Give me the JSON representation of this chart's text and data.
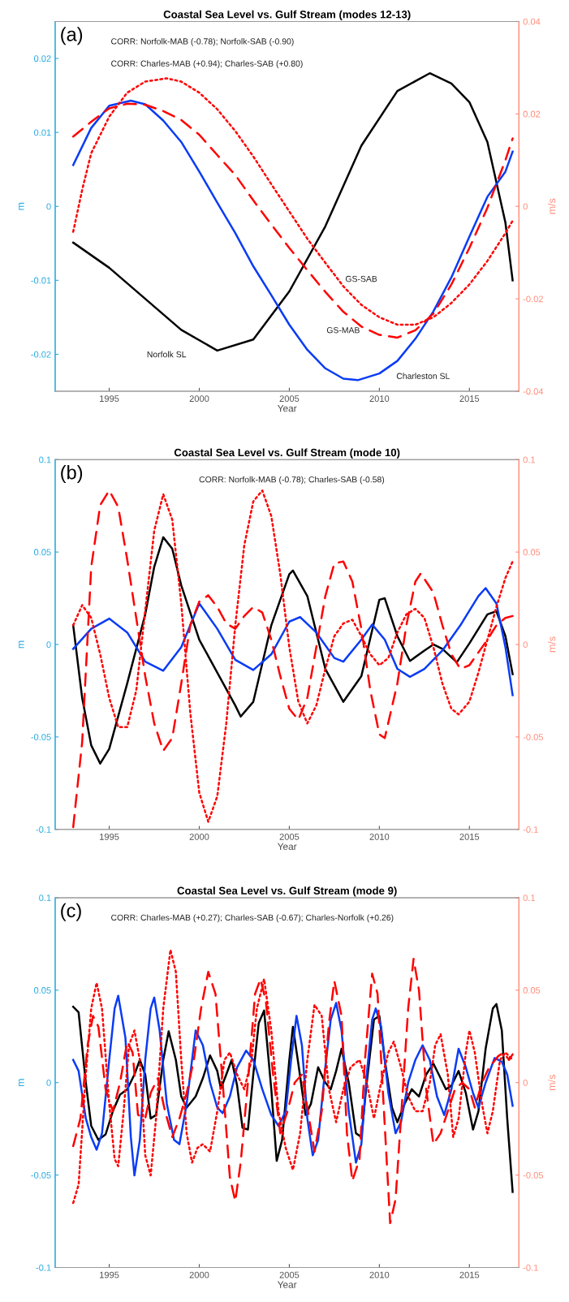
{
  "chart_data": [
    {
      "type": "line",
      "title": "Coastal Sea Level vs. Gulf Stream (modes 12-13)",
      "xlabel": "Year",
      "ylabel": "m",
      "y2label": "m/s",
      "xlim": [
        1992,
        2017.75
      ],
      "xticks": [
        1995,
        2000,
        2005,
        2010,
        2015
      ],
      "ylim": [
        -0.025,
        0.025
      ],
      "yticks": [
        -0.02,
        -0.01,
        0,
        0.01,
        0.02
      ],
      "y2lim": [
        -0.04,
        0.04
      ],
      "y2ticks": [
        -0.04,
        -0.02,
        0,
        0.02,
        0.04
      ],
      "grid": false,
      "legend": false,
      "marker": "none",
      "annotations": [
        "(a)",
        "CORR: Norfolk-MAB (-0.78); Norfolk-SAB (-0.90)",
        "CORR: Charles-MAB (+0.94); Charles-SAB (+0.80)"
      ],
      "series": [
        {
          "name": "Norfolk SL",
          "color": "#000000",
          "line_style": "solid",
          "x": [
            1993,
            1995,
            1997,
            1999,
            2001,
            2003,
            2005,
            2007,
            2009,
            2011,
            2012.8,
            2014,
            2015,
            2016,
            2017,
            2017.4
          ],
          "values": [
            -0.0049,
            -0.0083,
            -0.0125,
            -0.0167,
            -0.0195,
            -0.018,
            -0.0115,
            -0.0027,
            0.0082,
            0.0156,
            0.018,
            0.0166,
            0.0141,
            0.0087,
            -0.0022,
            -0.01
          ]
        },
        {
          "name": "Charleston SL",
          "color": "#0a3cf5",
          "line_style": "solid",
          "x": [
            1993,
            1994,
            1995,
            1996.2,
            1997,
            1998,
            1999,
            2000,
            2001,
            2002,
            2003,
            2004,
            2005,
            2006,
            2007,
            2008,
            2008.8,
            2010,
            2011,
            2012,
            2013,
            2014,
            2015,
            2016,
            2017,
            2017.4
          ],
          "values": [
            0.0056,
            0.0106,
            0.0136,
            0.0143,
            0.0138,
            0.0116,
            0.0087,
            0.0047,
            0.0005,
            -0.0036,
            -0.0081,
            -0.012,
            -0.016,
            -0.0194,
            -0.0219,
            -0.0233,
            -0.0235,
            -0.0226,
            -0.0209,
            -0.0179,
            -0.0142,
            -0.0096,
            -0.0041,
            0.0013,
            0.0047,
            0.0074
          ]
        },
        {
          "name": "GS-MAB",
          "color": "#ff0000",
          "line_style": "dashed",
          "axis": "y2",
          "x": [
            1993,
            1994,
            1995,
            1996,
            1997,
            1998,
            1999,
            2000,
            2001,
            2002,
            2003,
            2004,
            2005,
            2006,
            2007,
            2008,
            2009,
            2010,
            2011,
            2012,
            2013,
            2014,
            2015,
            2016,
            2017,
            2017.4
          ],
          "values": [
            0.0151,
            0.0183,
            0.0212,
            0.0222,
            0.022,
            0.0206,
            0.0187,
            0.0155,
            0.0111,
            0.0068,
            0.0013,
            -0.0039,
            -0.009,
            -0.0138,
            -0.0185,
            -0.0228,
            -0.026,
            -0.0278,
            -0.0284,
            -0.0268,
            -0.0232,
            -0.0169,
            -0.009,
            -0.0003,
            0.01,
            0.0147
          ]
        },
        {
          "name": "GS-SAB",
          "color": "#ff0000",
          "line_style": "dotted",
          "axis": "y2",
          "x": [
            1993,
            1993.5,
            1994,
            1995,
            1996,
            1997,
            1998.2,
            1999,
            2000,
            2001,
            2002,
            2003,
            2004,
            2005,
            2006,
            2007,
            2008,
            2009,
            2010,
            2011,
            2012,
            2013,
            2014,
            2015,
            2016,
            2017,
            2017.4
          ],
          "values": [
            -0.0055,
            0.0036,
            0.0115,
            0.0194,
            0.0246,
            0.027,
            0.0277,
            0.027,
            0.0246,
            0.021,
            0.0163,
            0.0108,
            0.0048,
            -0.0011,
            -0.007,
            -0.0122,
            -0.0173,
            -0.0213,
            -0.024,
            -0.0256,
            -0.0256,
            -0.024,
            -0.0209,
            -0.0169,
            -0.0118,
            -0.0058,
            -0.0031
          ]
        }
      ]
    },
    {
      "type": "line",
      "title": "Coastal Sea Level vs. Gulf Stream (mode 10)",
      "xlabel": "Year",
      "ylabel": "m",
      "y2label": "m/s",
      "xlim": [
        1992,
        2017.75
      ],
      "xticks": [
        1995,
        2000,
        2005,
        2010,
        2015
      ],
      "ylim": [
        -0.1,
        0.1
      ],
      "yticks": [
        -0.1,
        -0.05,
        0,
        0.05,
        0.1
      ],
      "y2lim": [
        -0.1,
        0.1
      ],
      "y2ticks": [
        -0.1,
        -0.05,
        0,
        0.05,
        0.1
      ],
      "grid": false,
      "legend": false,
      "marker": "none",
      "annotations": [
        "(b)",
        "CORR: Norfolk-MAB (-0.78); Charles-SAB (-0.58)"
      ],
      "series": [
        {
          "color": "#000000",
          "line_style": "solid",
          "x": [
            1993,
            1993.5,
            1994,
            1994.5,
            1995,
            1996,
            1997,
            1997.5,
            1998,
            1998.5,
            1999,
            2000,
            2001,
            2002,
            2002.3,
            2003,
            2004,
            2005,
            2005.2,
            2006,
            2007,
            2008,
            2009,
            2010,
            2010.3,
            2011,
            2011.7,
            2012.5,
            2013,
            2013.5,
            2014.3,
            2015,
            2016,
            2016.5,
            2017,
            2017.4
          ],
          "values": [
            0.0104,
            -0.029,
            -0.0545,
            -0.0644,
            -0.0565,
            -0.021,
            0.0163,
            0.042,
            0.058,
            0.0518,
            0.032,
            0.0026,
            -0.0152,
            -0.033,
            -0.039,
            -0.031,
            0.0104,
            0.038,
            0.04,
            0.0262,
            -0.0132,
            -0.031,
            -0.0171,
            0.0242,
            0.025,
            0.0045,
            -0.0089,
            -0.0033,
            0,
            -0.0024,
            -0.0096,
            0.0006,
            0.0163,
            0.018,
            0.0045,
            -0.016
          ]
        },
        {
          "color": "#0a3cf5",
          "line_style": "solid",
          "x": [
            1993,
            1994,
            1995,
            1996,
            1997,
            1998,
            1999,
            2000,
            2001,
            2002,
            2003,
            2004,
            2005,
            2005.6,
            2006.5,
            2007.5,
            2008,
            2009,
            2009.6,
            2010.3,
            2011,
            2011.7,
            2012.5,
            2013.5,
            2014.5,
            2015.5,
            2015.9,
            2016.5,
            2017,
            2017.4
          ],
          "values": [
            -0.0024,
            0.0085,
            0.014,
            0.0065,
            -0.0093,
            -0.0142,
            -0.0014,
            0.0222,
            0.0085,
            -0.0083,
            -0.0138,
            -0.0053,
            0.0124,
            0.0148,
            0.0065,
            -0.0073,
            -0.0093,
            0.0026,
            0.0108,
            0.0026,
            -0.0132,
            -0.0175,
            -0.0132,
            -0.0033,
            0.0104,
            0.0262,
            0.0305,
            0.0222,
            -0.0014,
            -0.0274
          ]
        },
        {
          "color": "#ff0000",
          "line_style": "dashed",
          "axis": "y2",
          "x": [
            1993,
            1993.5,
            1994,
            1994.5,
            1995,
            1995.5,
            1996,
            1996.5,
            1997,
            1997.5,
            1998,
            1998.5,
            1999,
            1999.5,
            2000,
            2000.5,
            2001,
            2001.5,
            2002,
            2002.5,
            2003,
            2003.5,
            2004,
            2004.5,
            2005,
            2005.5,
            2006,
            2006.5,
            2007,
            2007.5,
            2008,
            2008.5,
            2009,
            2009.5,
            2010,
            2010.3,
            2011,
            2011.5,
            2012,
            2012.3,
            2013,
            2013.5,
            2014,
            2014.5,
            2015,
            2016,
            2016.5,
            2017,
            2017.4
          ],
          "values": [
            -0.0988,
            -0.0526,
            0.0419,
            0.0754,
            0.0833,
            0.0744,
            0.0459,
            0.0144,
            -0.0171,
            -0.0427,
            -0.0575,
            -0.0506,
            -0.0211,
            0.0104,
            0.0232,
            0.0266,
            0.0203,
            0.0114,
            0.0085,
            0.0154,
            0.0203,
            0.0173,
            0.0026,
            -0.0171,
            -0.0348,
            -0.0407,
            -0.0289,
            -0.0014,
            0.0262,
            0.0439,
            0.0449,
            0.034,
            0.0085,
            -0.025,
            -0.0486,
            -0.0506,
            -0.0211,
            0.0104,
            0.034,
            0.0384,
            0.0281,
            0.0104,
            -0.0053,
            -0.0132,
            -0.0112,
            0.0026,
            0.0104,
            0.0144,
            0.0154
          ]
        },
        {
          "color": "#ff0000",
          "line_style": "dotted",
          "axis": "y2",
          "x": [
            1993,
            1993.5,
            1994,
            1994.5,
            1995,
            1995.5,
            1996,
            1996.5,
            1997,
            1997.5,
            1998,
            1998.5,
            1999,
            1999.5,
            2000,
            2000.5,
            2001,
            2001.5,
            2002,
            2002.5,
            2003,
            2003.5,
            2004,
            2004.5,
            2005,
            2005.5,
            2006,
            2006.5,
            2007,
            2007.5,
            2008,
            2008.5,
            2009,
            2009.5,
            2010,
            2010.5,
            2011,
            2011.5,
            2012,
            2012.5,
            2013,
            2013.5,
            2014,
            2014.4,
            2015,
            2015.5,
            2016,
            2016.5,
            2017,
            2017.4
          ],
          "values": [
            0.0104,
            0.0213,
            0.0144,
            -0.0053,
            -0.0289,
            -0.0447,
            -0.0447,
            -0.025,
            0.0183,
            0.0616,
            0.0813,
            0.0675,
            0.0222,
            -0.0368,
            -0.0801,
            -0.0959,
            -0.0821,
            -0.0427,
            0.0104,
            0.0537,
            0.0774,
            0.0833,
            0.0695,
            0.038,
            -0.0014,
            -0.0309,
            -0.0427,
            -0.0329,
            -0.0132,
            0.0045,
            0.0114,
            0.0134,
            0.0045,
            -0.0053,
            -0.0112,
            -0.0073,
            0.0065,
            0.0163,
            0.0193,
            0.0144,
            -0.0014,
            -0.0211,
            -0.0348,
            -0.0378,
            -0.0309,
            -0.0152,
            0.0026,
            0.0203,
            0.036,
            0.0449
          ]
        }
      ]
    },
    {
      "type": "line",
      "title": "Coastal Sea Level vs. Gulf Stream (mode 9)",
      "xlabel": "Year",
      "ylabel": "m",
      "y2label": "m/s",
      "xlim": [
        1992,
        2017.75
      ],
      "xticks": [
        1995,
        2000,
        2005,
        2010,
        2015
      ],
      "ylim": [
        -0.1,
        0.1
      ],
      "yticks": [
        -0.1,
        -0.05,
        0,
        0.05,
        0.1
      ],
      "y2lim": [
        -0.1,
        0.1
      ],
      "y2ticks": [
        -0.1,
        -0.05,
        0,
        0.05,
        0.1
      ],
      "grid": false,
      "legend": false,
      "marker": "none",
      "annotations": [
        "(c)",
        "CORR: Charles-MAB (+0.27); Charles-SAB (-0.67); Charles-Norfolk (+0.26)"
      ],
      "series": [
        {
          "color": "#000000",
          "line_style": "solid",
          "x": [
            1993,
            1993.3,
            1993.7,
            1994,
            1994.4,
            1994.8,
            1995.2,
            1995.6,
            1996,
            1996.4,
            1996.7,
            1997,
            1997.3,
            1997.6,
            1998,
            1998.3,
            1998.7,
            1999,
            1999.3,
            1999.8,
            2000.2,
            2000.6,
            2001,
            2001.2,
            2001.5,
            2001.8,
            2002.1,
            2002.4,
            2002.7,
            2003,
            2003.3,
            2003.6,
            2004,
            2004.3,
            2004.6,
            2005,
            2005.2,
            2005.5,
            2005.9,
            2006.2,
            2006.6,
            2007,
            2007.3,
            2007.6,
            2007.9,
            2008.3,
            2008.7,
            2009,
            2009.3,
            2009.7,
            2010,
            2010.3,
            2010.7,
            2011,
            2011.4,
            2011.8,
            2012.2,
            2012.6,
            2013,
            2013.3,
            2013.7,
            2014,
            2014.4,
            2014.8,
            2015.2,
            2015.5,
            2015.9,
            2016.3,
            2016.5,
            2016.8,
            2017.1,
            2017.4
          ],
          "values": [
            0.041,
            0.038,
            0,
            -0.0234,
            -0.031,
            -0.028,
            -0.0155,
            -0.0065,
            -0.0036,
            0.0044,
            0.0123,
            0.0044,
            -0.0194,
            -0.0175,
            0.0123,
            0.0278,
            0.0123,
            -0.0075,
            -0.0135,
            -0.0075,
            0.0024,
            0.0147,
            0.0063,
            -0.0032,
            0.0044,
            0.0123,
            -0.0016,
            -0.0244,
            -0.0254,
            0.0044,
            0.0321,
            0.039,
            -0.0036,
            -0.0423,
            -0.031,
            0.0123,
            0.0302,
            0.0103,
            -0.0175,
            -0.0115,
            0.0083,
            0,
            -0.0036,
            0.0063,
            0.0183,
            0,
            -0.0274,
            -0.0294,
            0,
            0.0341,
            0.0361,
            0.0123,
            -0.0135,
            -0.0214,
            -0.0115,
            -0.0036,
            -0.0075,
            0.0044,
            0.0103,
            0.0044,
            -0.0036,
            -0.0016,
            0.0063,
            -0.0056,
            -0.0254,
            -0.0155,
            0.0183,
            0.0401,
            0.0425,
            0.0282,
            -0.0194,
            -0.0591
          ]
        },
        {
          "color": "#0a3cf5",
          "line_style": "solid",
          "x": [
            1993,
            1993.3,
            1993.7,
            1994,
            1994.3,
            1994.6,
            1995,
            1995.3,
            1995.5,
            1995.9,
            1996.2,
            1996.4,
            1996.7,
            1997,
            1997.3,
            1997.5,
            1997.8,
            1998.2,
            1998.6,
            1998.9,
            1999.3,
            1999.8,
            2000.2,
            2000.6,
            2001,
            2001.3,
            2001.7,
            2002.1,
            2002.6,
            2003,
            2003.5,
            2004,
            2004.4,
            2004.8,
            2005.1,
            2005.4,
            2005.7,
            2006,
            2006.3,
            2006.6,
            2007,
            2007.3,
            2007.6,
            2007.9,
            2008.3,
            2008.7,
            2009,
            2009.3,
            2009.6,
            2009.8,
            2010.1,
            2010.5,
            2010.9,
            2011.2,
            2011.6,
            2012,
            2012.4,
            2012.8,
            2013.2,
            2013.6,
            2014,
            2014.4,
            2014.8,
            2015.2,
            2015.5,
            2015.9,
            2016.4,
            2016.8,
            2017.1,
            2017.4
          ],
          "values": [
            0.0123,
            0.0063,
            -0.0194,
            -0.0294,
            -0.0363,
            -0.0274,
            0.0123,
            0.0401,
            0.047,
            0.0242,
            -0.0294,
            -0.0502,
            -0.031,
            0.0123,
            0.0401,
            0.046,
            0.0282,
            -0.0115,
            -0.031,
            -0.0333,
            -0.0115,
            0.0282,
            0.0202,
            0,
            -0.0135,
            -0.0165,
            -0.0075,
            0.0083,
            0.0173,
            0.0123,
            -0.0036,
            -0.0175,
            -0.0234,
            -0.0155,
            0.0123,
            0.0361,
            0.0202,
            -0.0194,
            -0.0393,
            -0.031,
            0.0083,
            0.0341,
            0.0431,
            0.0282,
            -0.0155,
            -0.0433,
            -0.0333,
            0.0044,
            0.0341,
            0.0401,
            0.0302,
            -0.0056,
            -0.0274,
            -0.0214,
            0,
            0.0123,
            0.0202,
            0.0123,
            -0.0075,
            -0.0175,
            -0.0036,
            0.0183,
            0.0083,
            -0.0056,
            -0.0135,
            0,
            0.0133,
            0.0113,
            0.0044,
            -0.0125
          ]
        },
        {
          "color": "#ff0000",
          "line_style": "dashed",
          "axis": "y2",
          "x": [
            1993,
            1993.4,
            1993.8,
            1994.1,
            1994.4,
            1994.8,
            1995.2,
            1995.6,
            1996,
            1996.3,
            1996.6,
            1997,
            1997.3,
            1997.7,
            1998.1,
            1998.5,
            1998.9,
            1999.3,
            1999.7,
            2000.1,
            2000.5,
            2000.9,
            2001.3,
            2001.7,
            2002,
            2002.3,
            2002.7,
            2003.1,
            2003.4,
            2003.7,
            2004.1,
            2004.5,
            2004.9,
            2005.3,
            2005.7,
            2006.1,
            2006.4,
            2006.8,
            2007.2,
            2007.5,
            2007.9,
            2008.2,
            2008.5,
            2008.9,
            2009.2,
            2009.6,
            2009.9,
            2010.2,
            2010.6,
            2010.9,
            2011.2,
            2011.6,
            2011.9,
            2012.2,
            2012.6,
            2013,
            2013.4,
            2013.8,
            2014.2,
            2014.6,
            2015,
            2015.3,
            2015.7,
            2016.1,
            2016.6,
            2016.9,
            2017.2,
            2017.4
          ],
          "values": [
            -0.0343,
            -0.0194,
            0.0202,
            0.0361,
            0.0302,
            -0.0036,
            -0.0155,
            0,
            0.0222,
            0.0163,
            -0.0175,
            -0.0194,
            -0.0056,
            0.0024,
            -0.0155,
            -0.0294,
            -0.0194,
            -0.0056,
            0.0123,
            0.0401,
            0.0599,
            0.048,
            0,
            -0.0512,
            -0.0641,
            -0.0433,
            0,
            0.048,
            0.056,
            0.044,
            0.0044,
            -0.0274,
            -0.0155,
            0,
            0.0044,
            -0.0194,
            -0.0373,
            -0.0155,
            0.0321,
            0.055,
            0.0361,
            -0.0274,
            -0.0532,
            -0.0413,
            0.0123,
            0.0589,
            0.048,
            -0.0056,
            -0.076,
            -0.0631,
            -0.0194,
            0.0401,
            0.0669,
            0.05,
            -0.0036,
            -0.0333,
            -0.0274,
            -0.0155,
            -0.0036,
            0,
            -0.0036,
            -0.0135,
            0,
            0.0083,
            0.0143,
            0.0163,
            0.0123,
            0.0153
          ]
        },
        {
          "color": "#ff0000",
          "line_style": "dotted",
          "axis": "y2",
          "x": [
            1993,
            1993.3,
            1993.7,
            1994,
            1994.3,
            1994.6,
            1995,
            1995.3,
            1995.5,
            1995.8,
            1996.1,
            1996.4,
            1996.7,
            1997,
            1997.3,
            1997.6,
            1998,
            1998.4,
            1998.7,
            1999,
            1999.3,
            1999.6,
            1999.9,
            2000.2,
            2000.6,
            2001,
            2001.4,
            2001.7,
            2002.1,
            2002.5,
            2002.9,
            2003.2,
            2003.6,
            2004,
            2004.4,
            2004.8,
            2005.2,
            2005.6,
            2006,
            2006.4,
            2006.8,
            2007.2,
            2007.6,
            2008,
            2008.4,
            2008.9,
            2009.3,
            2009.7,
            2010.1,
            2010.5,
            2010.8,
            2011.2,
            2011.6,
            2012,
            2012.4,
            2012.8,
            2013.1,
            2013.4,
            2013.8,
            2014.1,
            2014.4,
            2014.8,
            2015,
            2015.3,
            2015.7,
            2016,
            2016.3,
            2016.7,
            2017,
            2017.4
          ],
          "values": [
            -0.0651,
            -0.0552,
            0.0044,
            0.0401,
            0.054,
            0.0401,
            -0.0115,
            -0.0413,
            -0.0452,
            -0.0155,
            0.0202,
            0.0282,
            0.0123,
            -0.0393,
            -0.0502,
            -0.0194,
            0.0401,
            0.0718,
            0.0599,
            0.0123,
            -0.0274,
            -0.0433,
            -0.0353,
            -0.0333,
            -0.0373,
            -0.0155,
            0.0123,
            0.0163,
            0.0044,
            -0.0036,
            0.0123,
            0.0401,
            0.056,
            0.0282,
            -0.0155,
            -0.0353,
            -0.0472,
            -0.0274,
            0.0123,
            0.0421,
            0.0361,
            -0.0036,
            -0.0214,
            -0.0036,
            0.0083,
            0.0123,
            0,
            -0.0194,
            0,
            0.0163,
            0.0222,
            0.0083,
            -0.0075,
            -0.0155,
            -0.0155,
            0,
            0.0202,
            0.0262,
            0.0044,
            -0.0294,
            -0.0194,
            0.0163,
            0.0282,
            0.0163,
            -0.0115,
            -0.0274,
            -0.0155,
            0.0123,
            0.0163,
            0.0123
          ]
        }
      ]
    }
  ]
}
